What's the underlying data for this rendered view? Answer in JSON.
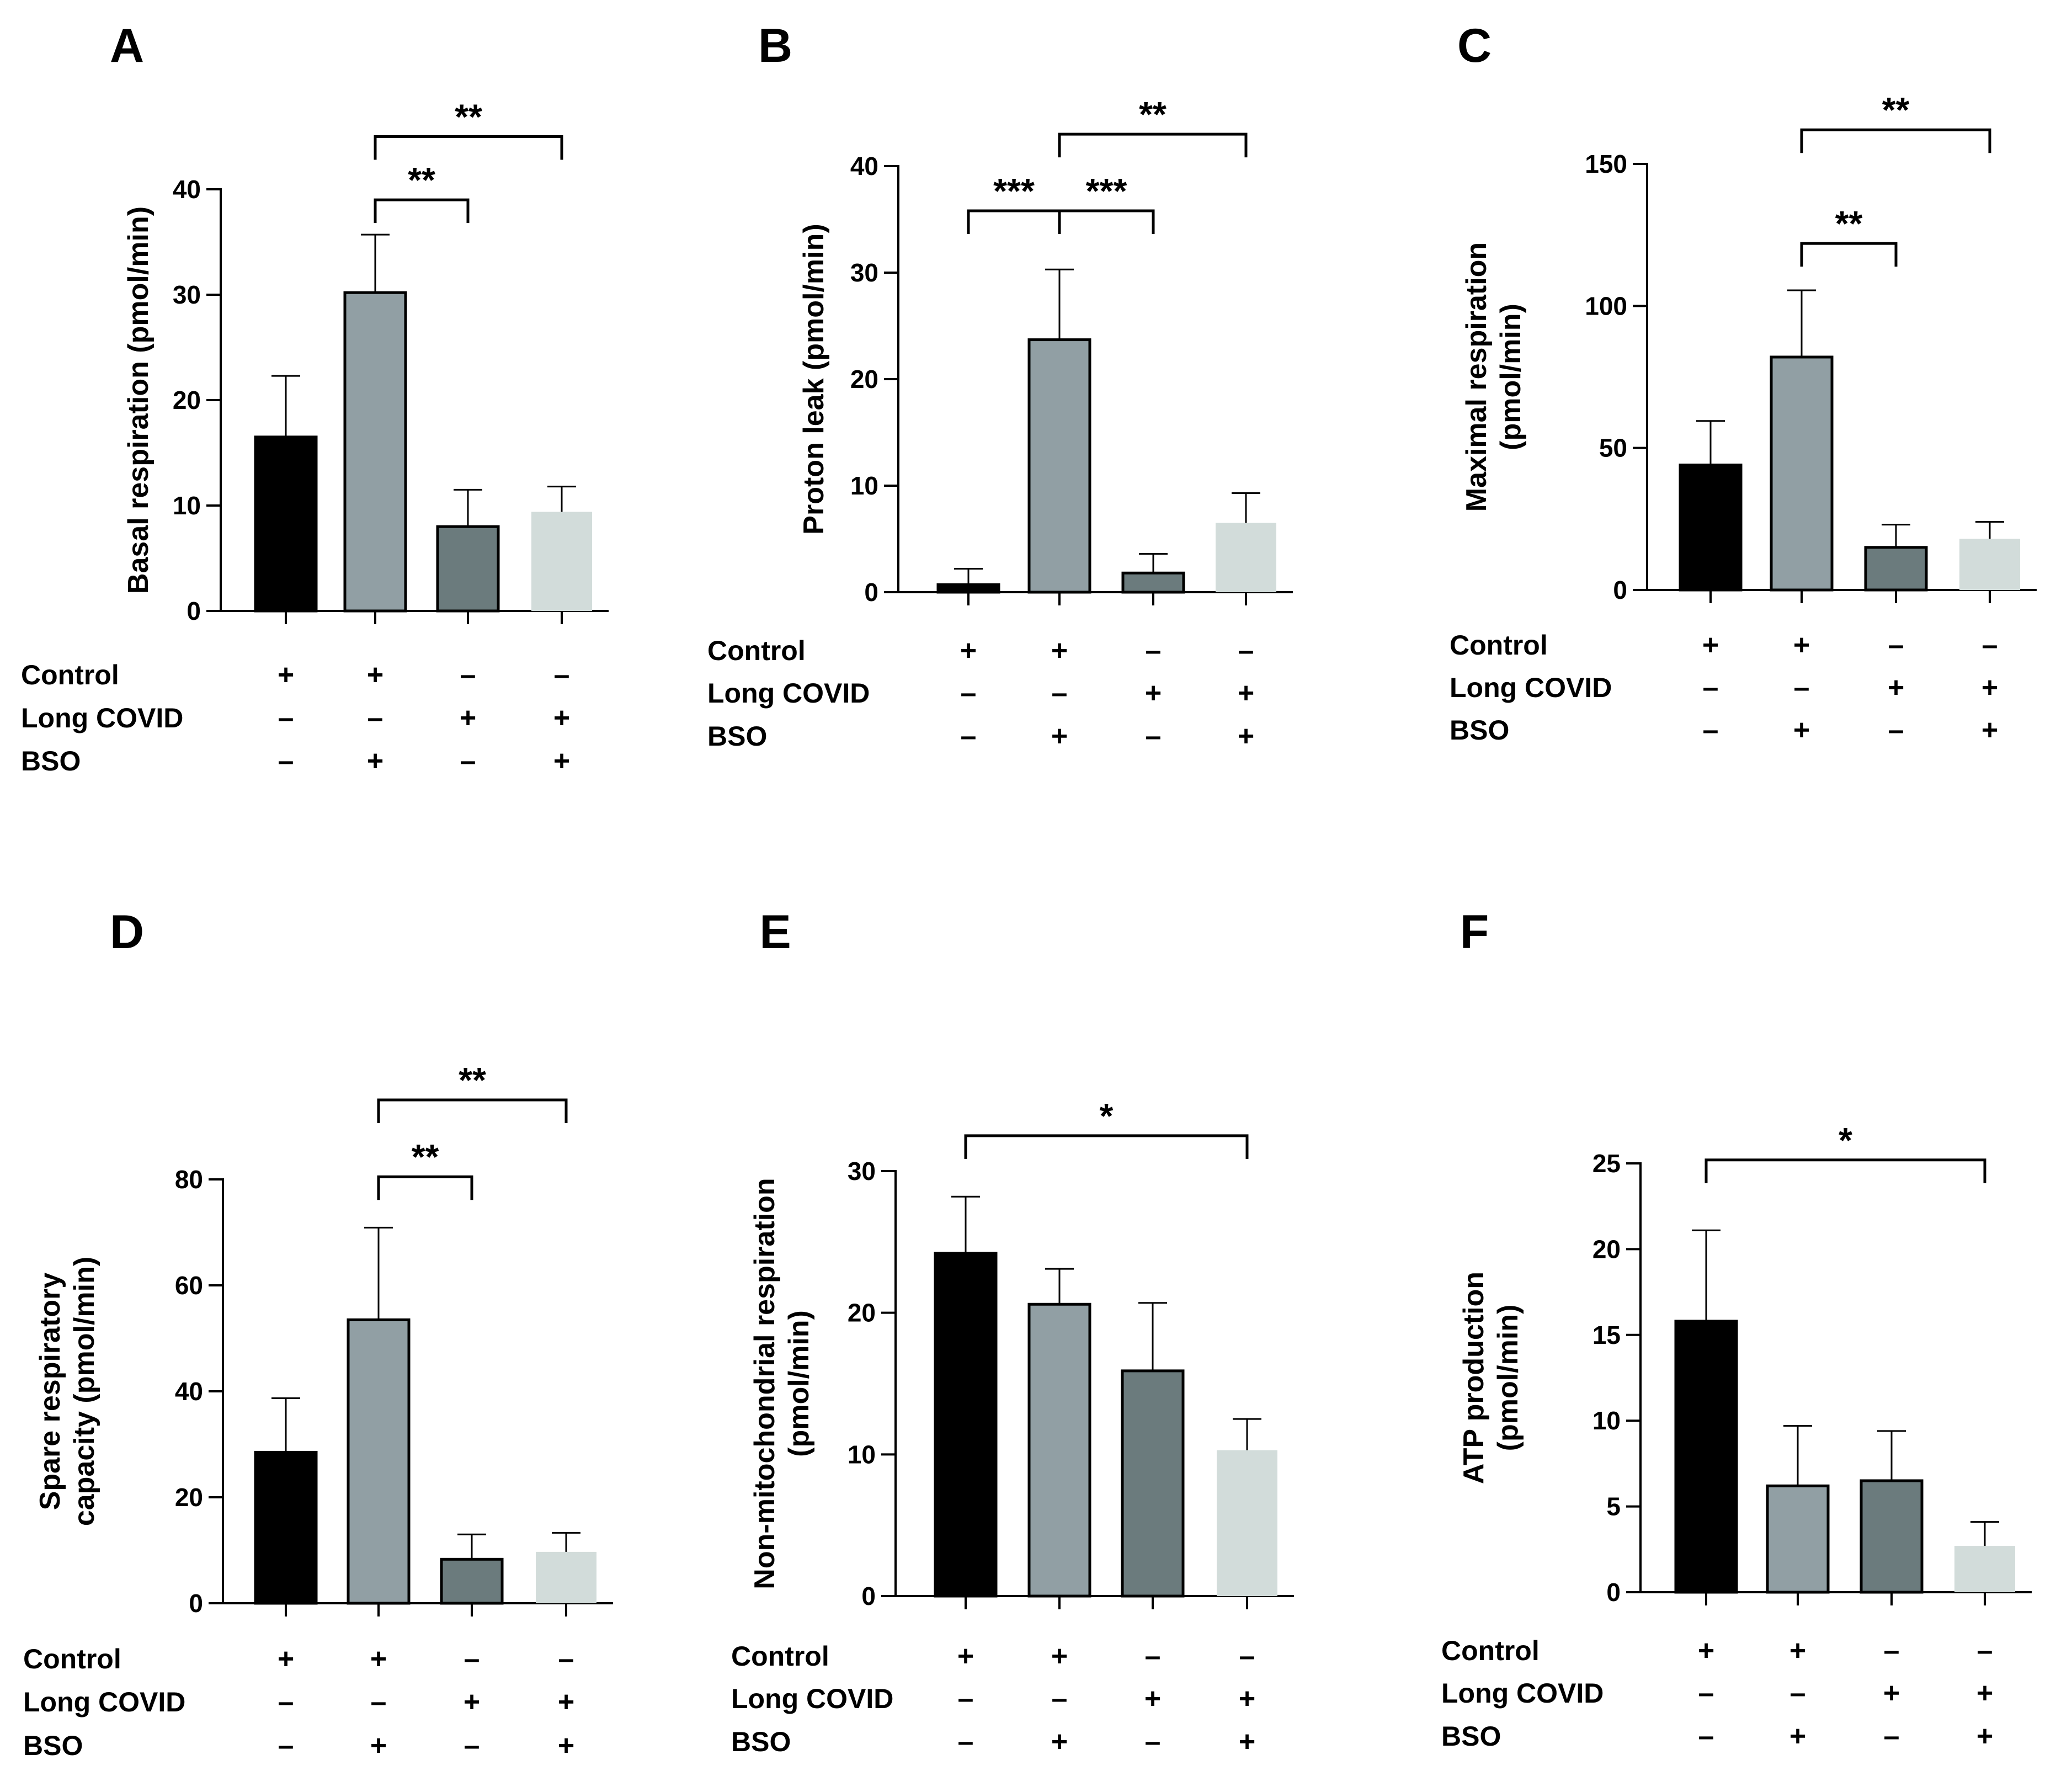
{
  "figure": {
    "colors": {
      "control": "#000000",
      "control_bso": "#919fa4",
      "long_covid": "#6b7b7d",
      "long_covid_bso": "#d2dcda"
    },
    "row_labels": [
      "Control",
      "Long COVID",
      "BSO"
    ],
    "group_design": [
      [
        "+",
        "+",
        "–",
        "–"
      ],
      [
        "–",
        "–",
        "+",
        "+"
      ],
      [
        "–",
        "+",
        "–",
        "+"
      ]
    ]
  },
  "chart_data": [
    {
      "type": "bar",
      "panel": "A",
      "ylabel": [
        "Basal respiration  (pmol/min)"
      ],
      "ylim": [
        0,
        40
      ],
      "yticks": [
        0,
        10,
        20,
        30,
        40
      ],
      "values": [
        16.5,
        30.2,
        8.0,
        9.4
      ],
      "errors": [
        5.8,
        5.5,
        3.5,
        2.4
      ],
      "significance": [
        {
          "from": 1,
          "to": 2,
          "label": "**",
          "y": 39
        },
        {
          "from": 1,
          "to": 3,
          "label": "**",
          "y": 45
        }
      ]
    },
    {
      "type": "bar",
      "panel": "B",
      "ylabel": [
        "Proton leak  (pmol/min)"
      ],
      "ylim": [
        0,
        40
      ],
      "yticks": [
        0,
        10,
        20,
        30,
        40
      ],
      "values": [
        0.7,
        23.7,
        1.8,
        6.5
      ],
      "errors": [
        1.5,
        6.6,
        1.8,
        2.8
      ],
      "significance": [
        {
          "from": 0,
          "to": 1,
          "label": "***",
          "y": 35.8
        },
        {
          "from": 1,
          "to": 2,
          "label": "***",
          "y": 35.8
        },
        {
          "from": 1,
          "to": 3,
          "label": "**",
          "y": 43
        }
      ]
    },
    {
      "type": "bar",
      "panel": "C",
      "ylabel": [
        "Maximal respiration",
        "(pmol/min)"
      ],
      "ylim": [
        0,
        150
      ],
      "yticks": [
        0,
        50,
        100,
        150
      ],
      "values": [
        44,
        82,
        15,
        18
      ],
      "errors": [
        15.5,
        23.5,
        8,
        6
      ],
      "significance": [
        {
          "from": 1,
          "to": 2,
          "label": "**",
          "y": 122
        },
        {
          "from": 1,
          "to": 3,
          "label": "**",
          "y": 162
        }
      ]
    },
    {
      "type": "bar",
      "panel": "D",
      "ylabel": [
        "Spare respiratory",
        "capacity (pmol/min)"
      ],
      "ylim": [
        0,
        80
      ],
      "yticks": [
        0,
        20,
        40,
        60,
        80
      ],
      "values": [
        28.5,
        53.5,
        8.3,
        9.7
      ],
      "errors": [
        10.2,
        17.4,
        4.7,
        3.6
      ],
      "significance": [
        {
          "from": 1,
          "to": 2,
          "label": "**",
          "y": 80.5
        },
        {
          "from": 1,
          "to": 3,
          "label": "**",
          "y": 95
        }
      ]
    },
    {
      "type": "bar",
      "panel": "E",
      "ylabel": [
        "Non-mitochondrial respiration",
        "(pmol/min)"
      ],
      "ylim": [
        0,
        30
      ],
      "yticks": [
        0,
        10,
        20,
        30
      ],
      "values": [
        24.2,
        20.6,
        15.9,
        10.3
      ],
      "errors": [
        4.0,
        2.5,
        4.8,
        2.2
      ],
      "significance": [
        {
          "from": 0,
          "to": 3,
          "label": "*",
          "y": 32.5
        }
      ]
    },
    {
      "type": "bar",
      "panel": "F",
      "ylabel": [
        "ATP production",
        "(pmol/min)"
      ],
      "ylim": [
        0,
        25
      ],
      "yticks": [
        0,
        5,
        10,
        15,
        20,
        25
      ],
      "values": [
        15.8,
        6.2,
        6.5,
        2.7
      ],
      "errors": [
        5.3,
        3.5,
        2.9,
        1.4
      ],
      "significance": [
        {
          "from": 0,
          "to": 3,
          "label": "*",
          "y": 25.2
        }
      ]
    }
  ]
}
